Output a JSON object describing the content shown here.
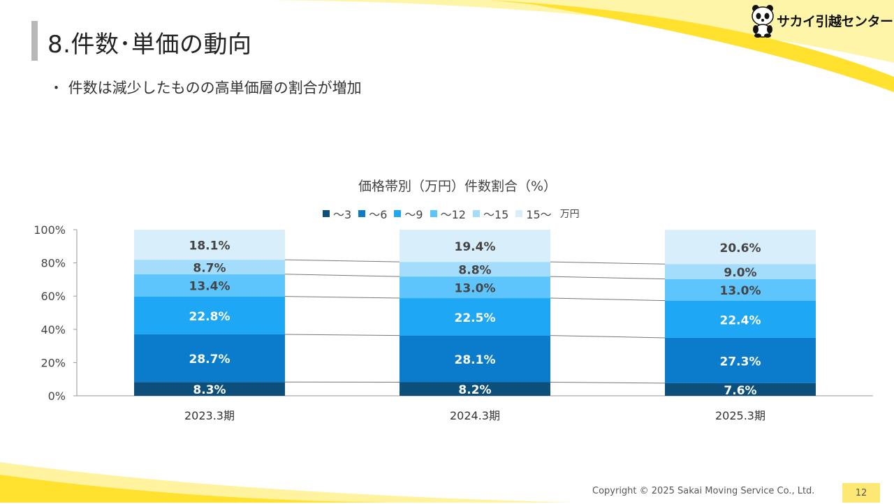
{
  "page": {
    "title": "8.件数･単価の動向",
    "bullet": "・ 件数は減少したものの高単価層の割合が増加",
    "logo_text": "サカイ引越センター",
    "copyright": "Copyright © 2025 Sakai Moving Service Co., Ltd.",
    "page_number": "12",
    "accent_color": "#ffe94d"
  },
  "chart_data": {
    "type": "bar",
    "stacked": true,
    "title": "価格帯別（万円）件数割合（%）",
    "legend_unit": "万円",
    "legend_position": "top",
    "categories": [
      "2023.3期",
      "2024.3期",
      "2025.3期"
    ],
    "series": [
      {
        "name": "～3",
        "color": "#0b4f7a",
        "values": [
          8.3,
          8.2,
          7.6
        ],
        "labels": [
          "8.3%",
          "8.2%",
          "7.6%"
        ]
      },
      {
        "name": "～6",
        "color": "#0a7ccb",
        "values": [
          28.7,
          28.1,
          27.3
        ],
        "labels": [
          "28.7%",
          "28.1%",
          "27.3%"
        ]
      },
      {
        "name": "～9",
        "color": "#1ea7f4",
        "values": [
          22.8,
          22.5,
          22.4
        ],
        "labels": [
          "22.8%",
          "22.5%",
          "22.4%"
        ]
      },
      {
        "name": "～12",
        "color": "#5ec5fc",
        "values": [
          13.4,
          13.0,
          13.0
        ],
        "labels": [
          "13.4%",
          "13.0%",
          "13.0%"
        ]
      },
      {
        "name": "～15",
        "color": "#a4dcfb",
        "values": [
          8.7,
          8.8,
          9.0
        ],
        "labels": [
          "8.7%",
          "8.8%",
          "9.0%"
        ]
      },
      {
        "name": "15～",
        "color": "#d8effb",
        "values": [
          18.1,
          19.4,
          20.6
        ],
        "labels": [
          "18.1%",
          "19.4%",
          "20.6%"
        ]
      }
    ],
    "yticks": [
      "0%",
      "20%",
      "40%",
      "60%",
      "80%",
      "100%"
    ],
    "ylim": [
      0,
      100
    ],
    "grid": false,
    "series_lines": true
  }
}
